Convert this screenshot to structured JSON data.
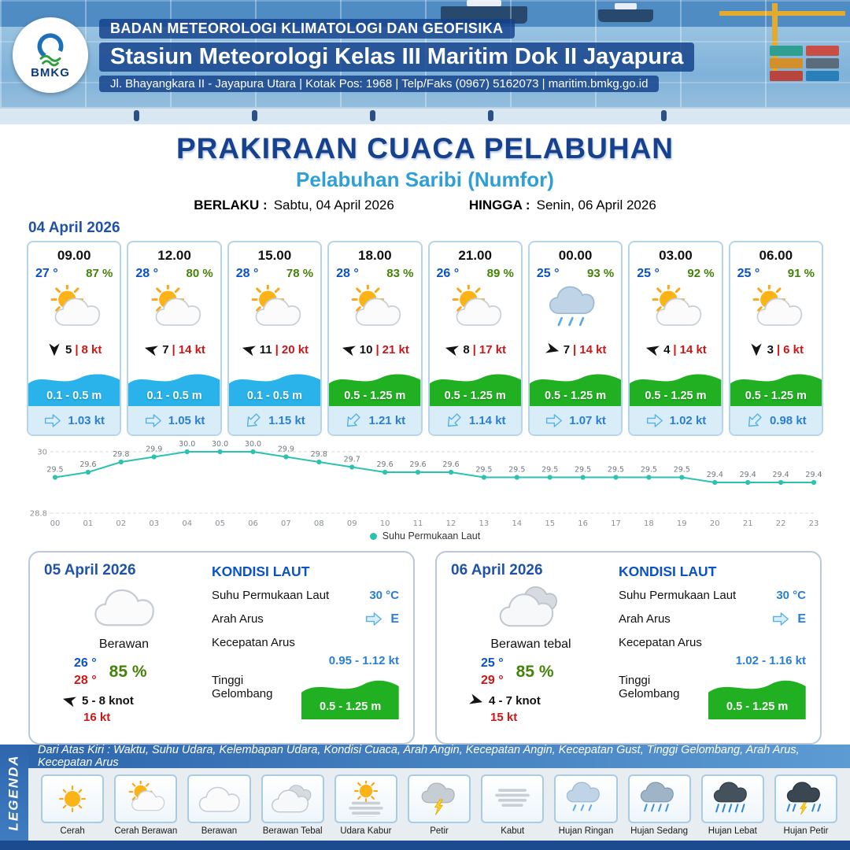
{
  "header": {
    "agency": "BADAN METEOROLOGI KLIMATOLOGI DAN GEOFISIKA",
    "station": "Stasiun Meteorologi Kelas III Maritim Dok II Jayapura",
    "address": "Jl. Bhayangkara II - Jayapura Utara | Kotak Pos: 1968 | Telp/Faks (0967) 5162073 | maritim.bmkg.go.id",
    "logo_text": "BMKG"
  },
  "title": {
    "main": "PRAKIRAAN CUACA PELABUHAN",
    "subtitle": "Pelabuhan Saribi (Numfor)",
    "valid_from_label": "BERLAKU :",
    "valid_from": "Sabtu, 04 April 2026",
    "valid_to_label": "HINGGA :",
    "valid_to": "Senin, 06 April 2026"
  },
  "misc": {
    "sep": "|"
  },
  "forecast": {
    "date": "04 April 2026",
    "cards": [
      {
        "time": "09.00",
        "temp": "27 °",
        "humidity": "87 %",
        "icon": "cerah-berawan",
        "wind_deg": 90,
        "wind_speed": "5",
        "gust": "8 kt",
        "wave": "0.1 - 0.5 m",
        "wave_color": "#29B3EA",
        "current_deg": 0,
        "current": "1.03 kt"
      },
      {
        "time": "12.00",
        "temp": "28 °",
        "humidity": "80 %",
        "icon": "cerah-berawan",
        "wind_deg": 195,
        "wind_speed": "7",
        "gust": "14 kt",
        "wave": "0.1 - 0.5 m",
        "wave_color": "#29B3EA",
        "current_deg": 0,
        "current": "1.05 kt"
      },
      {
        "time": "15.00",
        "temp": "28 °",
        "humidity": "78 %",
        "icon": "cerah-berawan",
        "wind_deg": 195,
        "wind_speed": "11",
        "gust": "20 kt",
        "wave": "0.1 - 0.5 m",
        "wave_color": "#29B3EA",
        "current_deg": 135,
        "current": "1.15 kt"
      },
      {
        "time": "18.00",
        "temp": "28 °",
        "humidity": "83 %",
        "icon": "cerah-berawan",
        "wind_deg": 195,
        "wind_speed": "10",
        "gust": "21 kt",
        "wave": "0.5 - 1.25 m",
        "wave_color": "#21B021",
        "current_deg": 135,
        "current": "1.21 kt"
      },
      {
        "time": "21.00",
        "temp": "26 °",
        "humidity": "89 %",
        "icon": "cerah-berawan",
        "wind_deg": 195,
        "wind_speed": "8",
        "gust": "17 kt",
        "wave": "0.5 - 1.25 m",
        "wave_color": "#21B021",
        "current_deg": 135,
        "current": "1.14 kt"
      },
      {
        "time": "00.00",
        "temp": "25 °",
        "humidity": "93 %",
        "icon": "hujan-ringan",
        "wind_deg": 15,
        "wind_speed": "7",
        "gust": "14 kt",
        "wave": "0.5 - 1.25 m",
        "wave_color": "#21B021",
        "current_deg": 0,
        "current": "1.07 kt"
      },
      {
        "time": "03.00",
        "temp": "25 °",
        "humidity": "92 %",
        "icon": "cerah-berawan",
        "wind_deg": 195,
        "wind_speed": "4",
        "gust": "14 kt",
        "wave": "0.5 - 1.25 m",
        "wave_color": "#21B021",
        "current_deg": 0,
        "current": "1.02 kt"
      },
      {
        "time": "06.00",
        "temp": "25 °",
        "humidity": "91 %",
        "icon": "cerah-berawan",
        "wind_deg": 90,
        "wind_speed": "3",
        "gust": "6 kt",
        "wave": "0.5 - 1.25 m",
        "wave_color": "#21B021",
        "current_deg": 135,
        "current": "0.98 kt"
      }
    ]
  },
  "chart_data": {
    "type": "line",
    "series_name": "Suhu Permukaan Laut",
    "x": [
      "00",
      "01",
      "02",
      "03",
      "04",
      "05",
      "06",
      "07",
      "08",
      "09",
      "10",
      "11",
      "12",
      "13",
      "14",
      "15",
      "16",
      "17",
      "18",
      "19",
      "20",
      "21",
      "22",
      "23"
    ],
    "values": [
      29.5,
      29.6,
      29.8,
      29.9,
      30.0,
      30.0,
      30.0,
      29.9,
      29.8,
      29.7,
      29.6,
      29.6,
      29.6,
      29.5,
      29.5,
      29.5,
      29.5,
      29.5,
      29.5,
      29.5,
      29.4,
      29.4,
      29.4,
      29.4
    ],
    "ylim": [
      28.8,
      30.0
    ],
    "yticks": [
      30,
      28.8
    ],
    "line_color": "#2CC2B0",
    "grid": true,
    "legend_position": "bottom"
  },
  "day_cards": [
    {
      "date": "05 April 2026",
      "icon": "berawan",
      "condition": "Berawan",
      "temp_min": "26 °",
      "temp_max": "28 °",
      "humidity": "85 %",
      "wind_deg": 195,
      "wind_range": "5 - 8 knot",
      "gust": "16 kt",
      "sea": {
        "title": "KONDISI LAUT",
        "sst_label": "Suhu Permukaan Laut",
        "sst": "30 °C",
        "current_dir_label": "Arah Arus",
        "current_dir": "E",
        "current_deg": 0,
        "current_speed_label": "Kecepatan Arus",
        "current_speed": "0.95 - 1.12 kt",
        "wave_label": "Tinggi Gelombang",
        "wave": "0.5 - 1.25 m",
        "wave_color": "#21B021"
      }
    },
    {
      "date": "06 April 2026",
      "icon": "berawan-tebal",
      "condition": "Berawan tebal",
      "temp_min": "25 °",
      "temp_max": "29 °",
      "humidity": "85 %",
      "wind_deg": 15,
      "wind_range": "4 - 7 knot",
      "gust": "15 kt",
      "sea": {
        "title": "KONDISI LAUT",
        "sst_label": "Suhu Permukaan Laut",
        "sst": "30 °C",
        "current_dir_label": "Arah Arus",
        "current_dir": "E",
        "current_deg": 0,
        "current_speed_label": "Kecepatan Arus",
        "current_speed": "1.02 - 1.16 kt",
        "wave_label": "Tinggi Gelombang",
        "wave": "0.5 - 1.25 m",
        "wave_color": "#21B021"
      }
    }
  ],
  "legend": {
    "strip": "Dari Atas Kiri : Waktu, Suhu Udara, Kelembapan Udara, Kondisi Cuaca, Arah Angin, Kecepatan Angin, Kecepatan Gust, Tinggi Gelombang, Arah Arus, Kecepatan Arus",
    "side_label": "LEGENDA",
    "items": [
      {
        "label": "Cerah",
        "icon": "cerah"
      },
      {
        "label": "Cerah Berawan",
        "icon": "cerah-berawan"
      },
      {
        "label": "Berawan",
        "icon": "berawan"
      },
      {
        "label": "Berawan Tebal",
        "icon": "berawan-tebal"
      },
      {
        "label": "Udara Kabur",
        "icon": "udara-kabur"
      },
      {
        "label": "Petir",
        "icon": "petir"
      },
      {
        "label": "Kabut",
        "icon": "kabut"
      },
      {
        "label": "Hujan Ringan",
        "icon": "hujan-ringan"
      },
      {
        "label": "Hujan Sedang",
        "icon": "hujan-sedang"
      },
      {
        "label": "Hujan Lebat",
        "icon": "hujan-lebat"
      },
      {
        "label": "Hujan Petir",
        "icon": "hujan-petir"
      }
    ]
  },
  "colors": {
    "title_blue": "#16418e",
    "subtitle_blue": "#2e9fd9",
    "temp_blue": "#0a52c8",
    "humidity_green": "#45820a",
    "gust_red": "#cf1616",
    "wave_blue": "#29B3EA",
    "wave_green": "#21B021"
  }
}
